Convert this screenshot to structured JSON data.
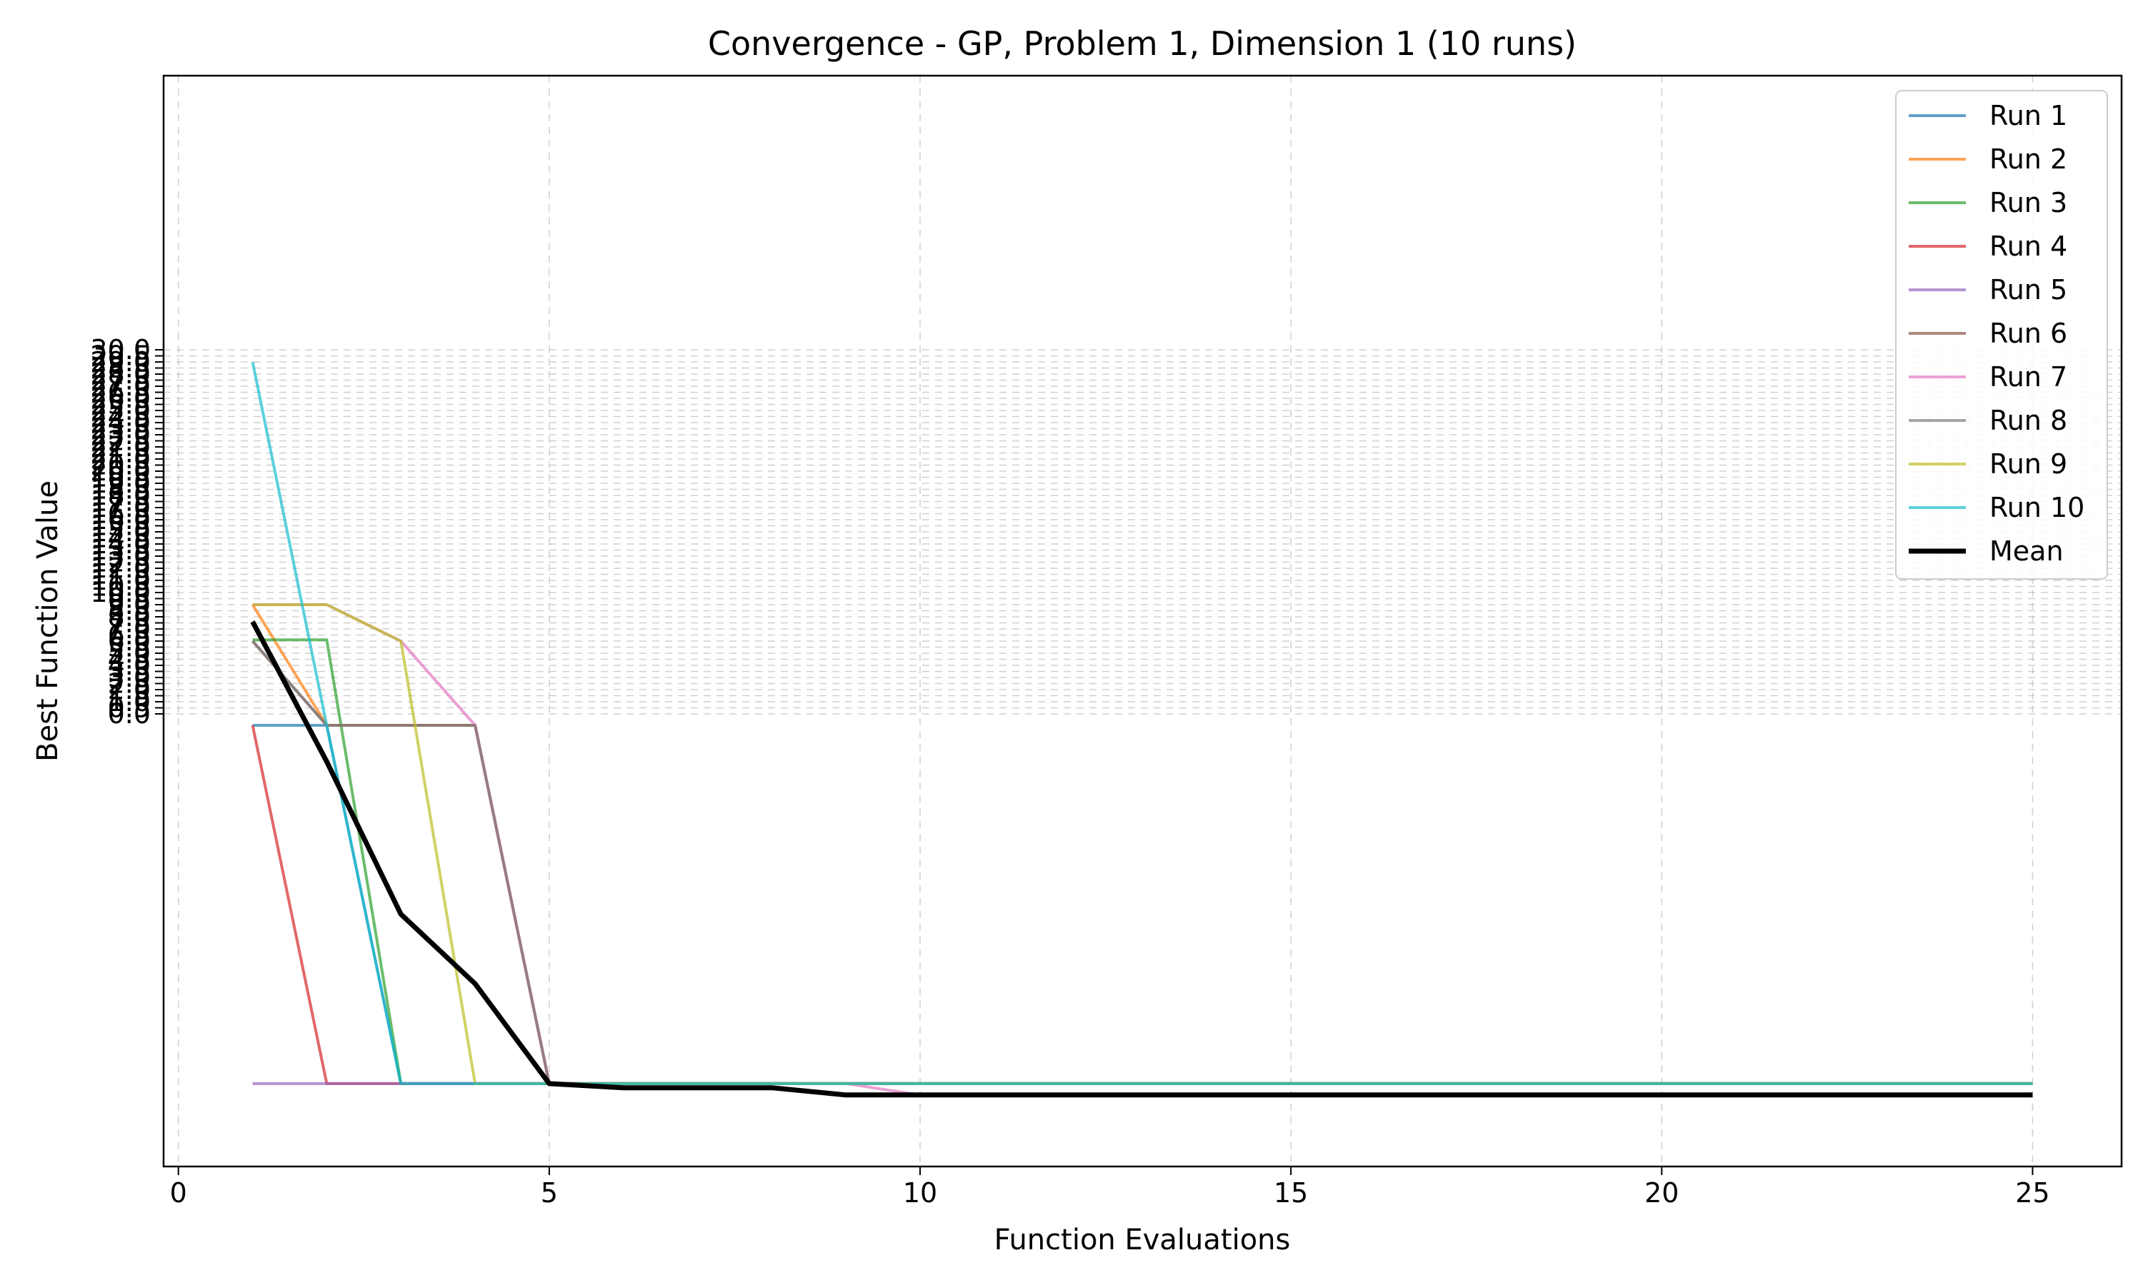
{
  "chart_data": {
    "type": "line",
    "title": "Convergence - GP, Problem 1, Dimension 1 (10 runs)",
    "xlabel": "Function Evaluations",
    "ylabel": "Best Function Value",
    "xlim": [
      -0.2,
      26.2
    ],
    "xticks": [
      0,
      5,
      10,
      15,
      20,
      25
    ],
    "yticks": [
      0.0,
      0.5,
      1.0,
      1.5,
      2.0,
      2.5,
      3.0,
      3.5,
      4.0,
      4.5,
      5.0,
      5.5,
      6.0,
      6.5,
      7.0,
      7.5,
      8.0,
      8.5,
      9.0,
      9.5,
      10.0,
      10.5,
      11.0,
      11.5,
      12.0,
      12.5,
      13.0,
      13.5,
      14.0,
      14.5,
      15.0,
      15.5,
      16.0,
      16.5,
      17.0,
      17.5,
      18.0,
      18.5,
      19.0,
      19.5,
      20.0,
      20.5,
      21.0,
      21.5,
      22.0,
      22.5,
      23.0,
      23.5,
      24.0,
      24.5,
      25.0,
      25.5,
      26.0,
      26.5,
      27.0,
      27.5,
      28.0,
      28.5,
      29.0,
      29.5,
      30.0
    ],
    "ytick_labels": [
      "0.0",
      "0.5",
      "1.0",
      "1.5",
      "2.0",
      "2.5",
      "3.0",
      "3.5",
      "4.0",
      "4.5",
      "5.0",
      "5.5",
      "6.0",
      "6.5",
      "7.0",
      "7.5",
      "8.0",
      "8.5",
      "9.0",
      "9.5",
      "10.0",
      "10.5",
      "11.0",
      "11.5",
      "12.0",
      "12.5",
      "13.0",
      "13.5",
      "14.0",
      "14.5",
      "15.0",
      "15.5",
      "16.0",
      "16.5",
      "17.0",
      "17.5",
      "18.0",
      "18.5",
      "19.0",
      "19.5",
      "20.0",
      "20.5",
      "21.0",
      "21.5",
      "22.0",
      "22.5",
      "23.0",
      "23.5",
      "24.0",
      "24.5",
      "25.0",
      "25.5",
      "26.0",
      "26.5",
      "27.0",
      "27.5",
      "28.0",
      "28.5",
      "29.0",
      "29.5",
      "30.0"
    ],
    "y_scale": "symlog (compressed below 0)",
    "grid": true,
    "legend_position": "top-right",
    "series": [
      {
        "name": "Run 1",
        "color": "#1f77b4",
        "x": [
          1,
          2,
          3,
          4,
          5,
          6,
          7,
          8,
          9,
          10,
          11,
          12,
          13,
          14,
          15,
          16,
          17,
          18,
          19,
          20,
          21,
          22,
          23,
          24,
          25
        ],
        "y": [
          -0.3,
          -0.3,
          -5000,
          -5000,
          -5000,
          -5000,
          -5000,
          -5000,
          -5000,
          -5000,
          -5000,
          -5000,
          -5000,
          -5000,
          -5000,
          -5000,
          -5000,
          -5000,
          -5000,
          -5000,
          -5000,
          -5000,
          -5000,
          -5000,
          -5000
        ]
      },
      {
        "name": "Run 2",
        "color": "#ff7f0e",
        "x": [
          1,
          2,
          3,
          4,
          5,
          6,
          7,
          8,
          9,
          10,
          11,
          12,
          13,
          14,
          15,
          16,
          17,
          18,
          19,
          20,
          21,
          22,
          23,
          24,
          25
        ],
        "y": [
          9.0,
          -0.3,
          -0.3,
          -0.3,
          -5000,
          -5000,
          -5000,
          -5000,
          -5000,
          -5000,
          -5000,
          -5000,
          -5000,
          -5000,
          -5000,
          -5000,
          -5000,
          -5000,
          -5000,
          -5000,
          -5000,
          -5000,
          -5000,
          -5000,
          -5000
        ]
      },
      {
        "name": "Run 3",
        "color": "#2ca02c",
        "x": [
          1,
          2,
          3,
          4,
          5,
          6,
          7,
          8,
          9,
          10,
          11,
          12,
          13,
          14,
          15,
          16,
          17,
          18,
          19,
          20,
          21,
          22,
          23,
          24,
          25
        ],
        "y": [
          6.1,
          6.1,
          -5000,
          -5000,
          -5000,
          -5000,
          -5000,
          -5000,
          -5000,
          -5000,
          -5000,
          -5000,
          -5000,
          -5000,
          -5000,
          -5000,
          -5000,
          -5000,
          -5000,
          -5000,
          -5000,
          -5000,
          -5000,
          -5000,
          -5000
        ]
      },
      {
        "name": "Run 4",
        "color": "#d62728",
        "x": [
          1,
          2,
          3,
          4,
          5,
          6,
          7,
          8,
          9,
          10,
          11,
          12,
          13,
          14,
          15,
          16,
          17,
          18,
          19,
          20,
          21,
          22,
          23,
          24,
          25
        ],
        "y": [
          -0.3,
          -5000,
          -5000,
          -5000,
          -5000,
          -5000,
          -5000,
          -5000,
          -5000,
          -5000,
          -5000,
          -5000,
          -5000,
          -5000,
          -5000,
          -5000,
          -5000,
          -5000,
          -5000,
          -5000,
          -5000,
          -5000,
          -5000,
          -5000,
          -5000
        ]
      },
      {
        "name": "Run 5",
        "color": "#9467bd",
        "x": [
          1,
          2,
          3,
          4,
          5,
          6,
          7,
          8,
          9,
          10,
          11,
          12,
          13,
          14,
          15,
          16,
          17,
          18,
          19,
          20,
          21,
          22,
          23,
          24,
          25
        ],
        "y": [
          -5000,
          -5000,
          -5000,
          -5000,
          -5000,
          -5000,
          -5000,
          -5000,
          -5000,
          -5000,
          -5000,
          -5000,
          -5000,
          -5000,
          -5000,
          -5000,
          -5000,
          -5000,
          -5000,
          -5000,
          -5000,
          -5000,
          -5000,
          -5000,
          -5000
        ]
      },
      {
        "name": "Run 6",
        "color": "#8c564b",
        "x": [
          1,
          2,
          3,
          4,
          5,
          6,
          7,
          8,
          9,
          10,
          11,
          12,
          13,
          14,
          15,
          16,
          17,
          18,
          19,
          20,
          21,
          22,
          23,
          24,
          25
        ],
        "y": [
          6.0,
          -0.3,
          -0.3,
          -0.3,
          -5000,
          -5000,
          -5000,
          -5000,
          -5000,
          -5000,
          -5000,
          -5000,
          -5000,
          -5000,
          -5000,
          -5000,
          -5000,
          -5000,
          -5000,
          -5000,
          -5000,
          -5000,
          -5000,
          -5000,
          -5000
        ]
      },
      {
        "name": "Run 7",
        "color": "#e377c2",
        "x": [
          1,
          2,
          3,
          4,
          5,
          6,
          7,
          8,
          9,
          10,
          11,
          12,
          13,
          14,
          15,
          16,
          17,
          18,
          19,
          20,
          21,
          22,
          23,
          24,
          25
        ],
        "y": [
          9.0,
          9.0,
          6.0,
          -0.3,
          -5000,
          -5000,
          -5000,
          -5000,
          -5000,
          -6500,
          -6500,
          -6500,
          -6500,
          -6500,
          -6500,
          -6500,
          -6500,
          -6500,
          -6500,
          -6500,
          -6500,
          -6500,
          -6500,
          -6500,
          -6500
        ]
      },
      {
        "name": "Run 8",
        "color": "#7f7f7f",
        "x": [
          1,
          2,
          3,
          4,
          5,
          6,
          7,
          8,
          9,
          10,
          11,
          12,
          13,
          14,
          15,
          16,
          17,
          18,
          19,
          20,
          21,
          22,
          23,
          24,
          25
        ],
        "y": [
          6.0,
          -0.3,
          -0.3,
          -0.3,
          -5000,
          -5000,
          -5000,
          -5000,
          -5000,
          -5000,
          -5000,
          -5000,
          -5000,
          -5000,
          -5000,
          -5000,
          -5000,
          -5000,
          -5000,
          -5000,
          -5000,
          -5000,
          -5000,
          -5000,
          -5000
        ]
      },
      {
        "name": "Run 9",
        "color": "#bcbd22",
        "x": [
          1,
          2,
          3,
          4,
          5,
          6,
          7,
          8,
          9,
          10,
          11,
          12,
          13,
          14,
          15,
          16,
          17,
          18,
          19,
          20,
          21,
          22,
          23,
          24,
          25
        ],
        "y": [
          9.0,
          9.0,
          6.0,
          -5000,
          -5000,
          -5000,
          -5000,
          -5000,
          -5000,
          -5000,
          -5000,
          -5000,
          -5000,
          -5000,
          -5000,
          -5000,
          -5000,
          -5000,
          -5000,
          -5000,
          -5000,
          -5000,
          -5000,
          -5000,
          -5000
        ]
      },
      {
        "name": "Run 10",
        "color": "#17becf",
        "x": [
          1,
          2,
          3,
          4,
          5,
          6,
          7,
          8,
          9,
          10,
          11,
          12,
          13,
          14,
          15,
          16,
          17,
          18,
          19,
          20,
          21,
          22,
          23,
          24,
          25
        ],
        "y": [
          29.0,
          -0.3,
          -5000,
          -5000,
          -5000,
          -5000,
          -5000,
          -5000,
          -5000,
          -5000,
          -5000,
          -5000,
          -5000,
          -5000,
          -5000,
          -5000,
          -5000,
          -5000,
          -5000,
          -5000,
          -5000,
          -5000,
          -5000,
          -5000,
          -5000
        ]
      },
      {
        "name": "Mean",
        "color": "#000000",
        "x": [
          1,
          2,
          3,
          4,
          5,
          6,
          7,
          8,
          9,
          10,
          11,
          12,
          13,
          14,
          15,
          16,
          17,
          18,
          19,
          20,
          21,
          22,
          23,
          24,
          25
        ],
        "y": [
          7.6,
          -2,
          -100,
          -500,
          -5000,
          -5500,
          -5500,
          -5500,
          -6500,
          -6500,
          -6500,
          -6500,
          -6500,
          -6500,
          -6500,
          -6500,
          -6500,
          -6500,
          -6500,
          -6500,
          -6500,
          -6500,
          -6500,
          -6500,
          -6500
        ]
      }
    ]
  }
}
